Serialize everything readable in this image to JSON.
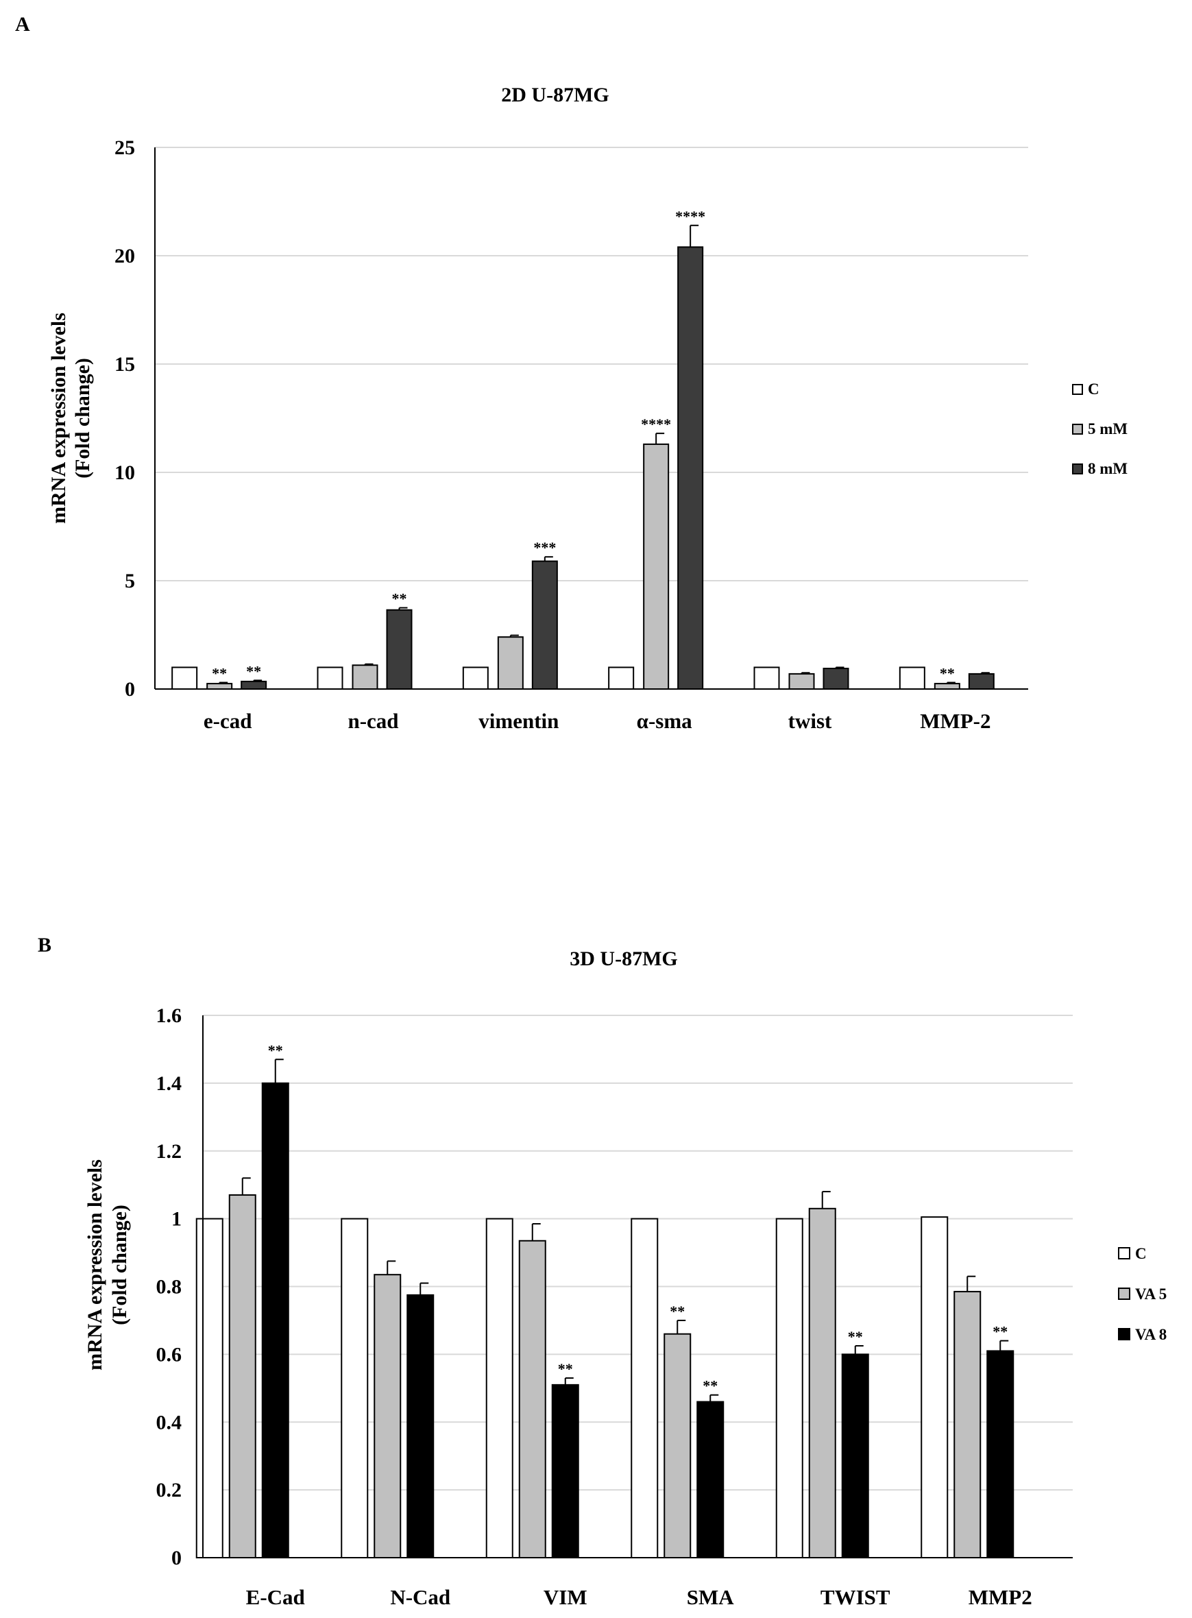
{
  "chart_data": [
    {
      "panel": "A",
      "type": "bar",
      "title": "2D U-87MG",
      "ylabel": [
        "mRNA expression levels",
        "(Fold change)"
      ],
      "xlabel": "",
      "ylim": [
        0,
        25
      ],
      "yticks": [
        "0",
        "5",
        "10",
        "15",
        "20",
        "25"
      ],
      "categories": [
        "e-cad",
        "n-cad",
        "vimentin",
        "α-sma",
        "twist",
        "MMP-2"
      ],
      "series": [
        {
          "name": "C",
          "color": "#ffffff",
          "values": [
            1,
            1,
            1,
            1,
            1,
            1
          ],
          "errors": [
            0,
            0,
            0,
            0,
            0,
            0
          ],
          "labels": [
            "",
            "",
            "",
            "",
            "",
            ""
          ]
        },
        {
          "name": "5 mM",
          "color": "#c0c0c0",
          "values": [
            0.25,
            1.1,
            2.4,
            11.3,
            0.7,
            0.25
          ],
          "errors": [
            0.05,
            0.05,
            0.08,
            0.5,
            0.05,
            0.05
          ],
          "labels": [
            "**",
            "",
            "",
            "****",
            "",
            "**"
          ]
        },
        {
          "name": "8 mM",
          "color": "#3c3c3c",
          "values": [
            0.35,
            3.65,
            5.9,
            20.4,
            0.95,
            0.7
          ],
          "errors": [
            0.05,
            0.1,
            0.2,
            1.0,
            0.05,
            0.05
          ],
          "labels": [
            "**",
            "**",
            "***",
            "****",
            "",
            ""
          ]
        }
      ],
      "legend": [
        "C",
        "5 mM",
        "8 mM"
      ],
      "legend_position": "right",
      "grid": true
    },
    {
      "panel": "B",
      "type": "bar",
      "title": "3D U-87MG",
      "ylabel": [
        "mRNA expression levels",
        "(Fold change)"
      ],
      "xlabel": "",
      "ylim": [
        0,
        1.6
      ],
      "yticks": [
        "0",
        "0.2",
        "0.4",
        "0.6",
        "0.8",
        "1",
        "1.2",
        "1.4",
        "1.6"
      ],
      "categories": [
        "E-Cad",
        "N-Cad",
        "VIM",
        "SMA",
        "TWIST",
        "MMP2"
      ],
      "series": [
        {
          "name": "C",
          "color": "#ffffff",
          "values": [
            1,
            1,
            1,
            1,
            1,
            1.005
          ],
          "errors": [
            0,
            0,
            0,
            0,
            0,
            0
          ],
          "labels": [
            "",
            "",
            "",
            "",
            "",
            ""
          ]
        },
        {
          "name": "VA 5",
          "color": "#c0c0c0",
          "values": [
            1.07,
            0.835,
            0.935,
            0.66,
            1.03,
            0.785
          ],
          "errors": [
            0.05,
            0.04,
            0.05,
            0.04,
            0.05,
            0.045
          ],
          "labels": [
            "",
            "",
            "",
            "**",
            "",
            ""
          ]
        },
        {
          "name": "VA 8",
          "color": "#000000",
          "values": [
            1.4,
            0.775,
            0.51,
            0.46,
            0.6,
            0.61
          ],
          "errors": [
            0.07,
            0.035,
            0.02,
            0.02,
            0.025,
            0.03
          ],
          "labels": [
            "**",
            "",
            "**",
            "**",
            "**",
            "**"
          ]
        }
      ],
      "legend": [
        "C",
        "VA 5",
        "VA 8"
      ],
      "legend_position": "right",
      "grid": true
    }
  ]
}
